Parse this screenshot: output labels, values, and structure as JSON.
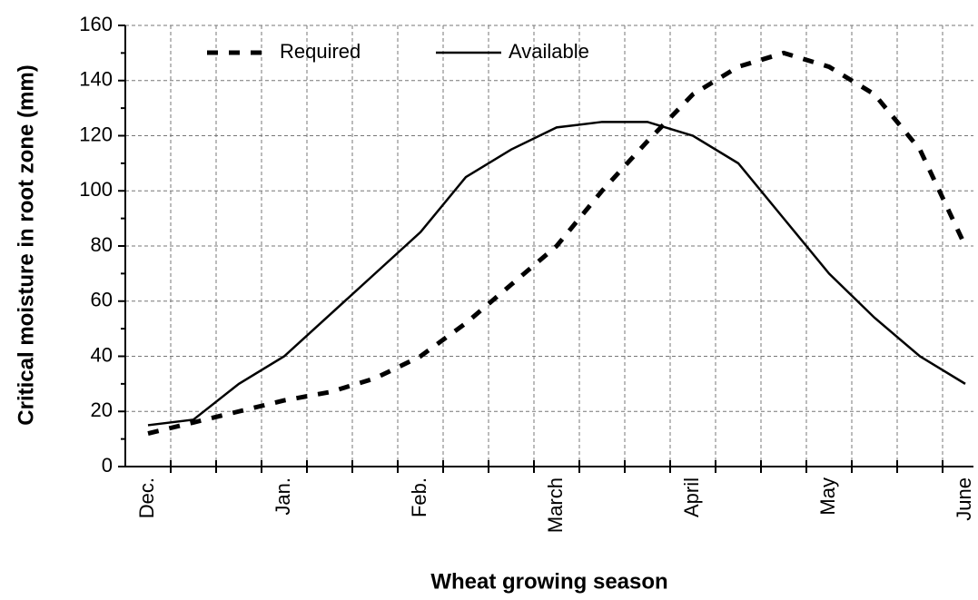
{
  "chart_data": {
    "type": "line",
    "x_label": "Wheat growing season",
    "y_label": "Critical moisture in root zone (mm)",
    "categories": [
      "Dec.",
      null,
      null,
      "Jan.",
      null,
      null,
      "Feb.",
      null,
      null,
      "March",
      null,
      null,
      "April",
      null,
      null,
      "May",
      null,
      null,
      "June"
    ],
    "series": [
      {
        "name": "Required",
        "color": "#000000",
        "dashed": true,
        "values": [
          12,
          16,
          20,
          24,
          27,
          32,
          40,
          52,
          66,
          80,
          100,
          118,
          135,
          145,
          150,
          145,
          135,
          115,
          80
        ]
      },
      {
        "name": "Available",
        "color": "#000000",
        "dashed": false,
        "values": [
          15,
          17,
          30,
          40,
          55,
          70,
          85,
          105,
          115,
          123,
          125,
          125,
          120,
          110,
          90,
          70,
          54,
          40,
          30
        ]
      }
    ],
    "ylim": [
      0,
      160
    ],
    "yticks": [
      0,
      20,
      40,
      60,
      80,
      100,
      120,
      140,
      160
    ],
    "grid": true,
    "legend": "top-left"
  }
}
